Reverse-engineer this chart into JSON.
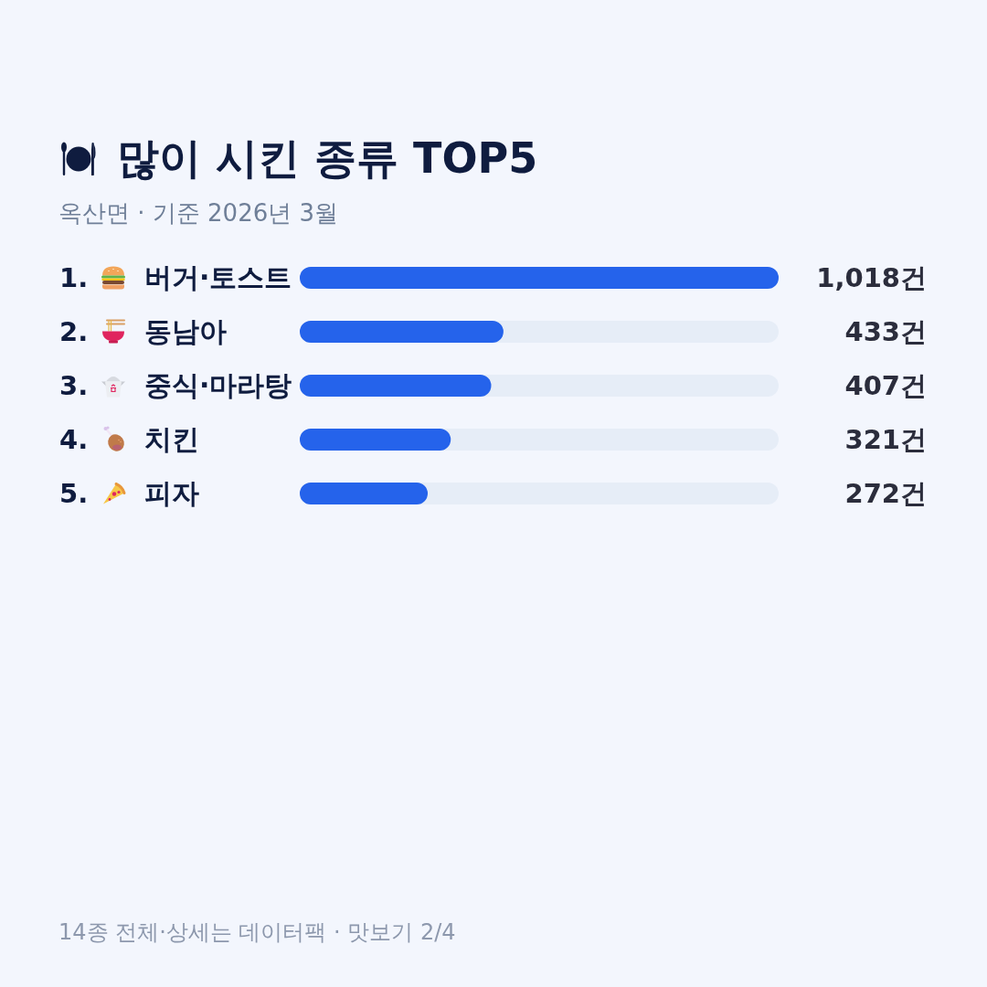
{
  "chart_data": {
    "type": "bar",
    "orientation": "horizontal",
    "title": "많이 시킨 종류 TOP5",
    "subtitle": "옥산면 · 기준 2026년 3월",
    "categories": [
      "1. 버거·토스트",
      "2. 동남아",
      "3. 중식·마라탕",
      "4. 치킨",
      "5. 피자"
    ],
    "values": [
      1018,
      433,
      407,
      321,
      272
    ],
    "value_labels": [
      "1,018건",
      "433건",
      "407건",
      "321건",
      "272건"
    ],
    "color": "#2563eb",
    "annotations": [
      "14종 전체·상세는 데이터팩 · 맛보기 2/4"
    ]
  }
}
